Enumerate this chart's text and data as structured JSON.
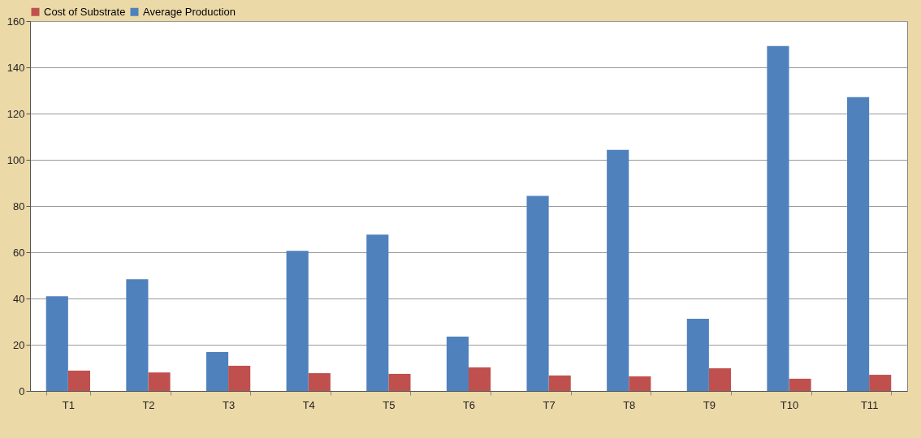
{
  "chart_data": {
    "type": "bar",
    "categories": [
      "T1",
      "T2",
      "T3",
      "T4",
      "T5",
      "T6",
      "T7",
      "T8",
      "T9",
      "T10",
      "T11"
    ],
    "series": [
      {
        "name": "Cost of Substrate",
        "color": "#c0504d",
        "values": [
          8.8,
          8,
          10.9,
          7.7,
          7.4,
          10.2,
          6.7,
          6.3,
          9.8,
          5.3,
          7
        ]
      },
      {
        "name": "Average Production",
        "color": "#4f81bd",
        "values": [
          41,
          48.3,
          16.8,
          60.6,
          67.6,
          23.5,
          84.4,
          104.3,
          31.2,
          149.2,
          127.1
        ]
      }
    ],
    "ylim": [
      0,
      160
    ],
    "yticks": [
      0,
      20,
      40,
      60,
      80,
      100,
      120,
      140,
      160
    ],
    "grid": "y",
    "legend": "top"
  }
}
